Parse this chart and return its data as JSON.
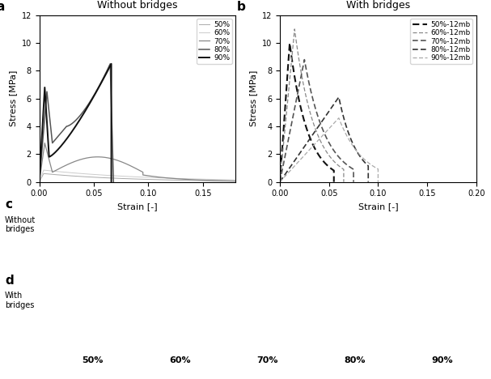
{
  "panel_a_title": "Without bridges",
  "panel_b_title": "With bridges",
  "ylabel_a": "Stress [MPa]",
  "ylabel_b": "Stress [MPa]",
  "xlabel_a": "Strain [-]",
  "xlabel_b": "Strain [-]",
  "ylim_ab": [
    0,
    12
  ],
  "xlim_a": [
    0,
    0.18
  ],
  "xlim_b": [
    0,
    0.2
  ],
  "yticks_ab": [
    0,
    2,
    4,
    6,
    8,
    10,
    12
  ],
  "xticks_a": [
    0,
    0.05,
    0.1,
    0.15
  ],
  "xticks_b": [
    0,
    0.05,
    0.1,
    0.15,
    0.2
  ],
  "legend_labels_a": [
    "50%",
    "60%",
    "70%",
    "80%",
    "90%"
  ],
  "legend_labels_b": [
    "50%-12mb",
    "60%-12mb",
    "70%-12mb",
    "80%-12mb",
    "90%-12mb"
  ],
  "label_without": "Without\nbridges",
  "label_with": "With\nbridges",
  "pct_labels": [
    "50%",
    "60%",
    "70%",
    "80%",
    "90%"
  ],
  "colors_a": [
    "#aaaaaa",
    "#cccccc",
    "#888888",
    "#555555",
    "#111111"
  ],
  "colors_b": [
    "#333333",
    "#aaaaaa",
    "#555555",
    "#333333",
    "#888888"
  ],
  "lw_a": [
    0.7,
    0.7,
    0.9,
    1.1,
    1.4
  ],
  "lw_b": [
    1.4,
    1.0,
    1.2,
    1.2,
    0.9
  ]
}
